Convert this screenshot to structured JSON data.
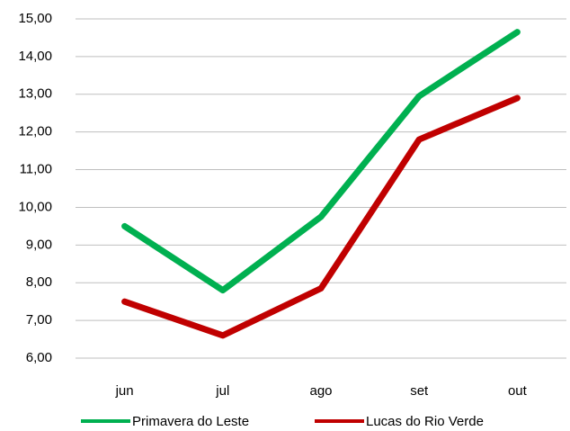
{
  "chart_data": {
    "type": "line",
    "categories": [
      "jun",
      "jul",
      "ago",
      "set",
      "out"
    ],
    "series": [
      {
        "name": "Primavera do Leste",
        "color": "#00b050",
        "values": [
          9.5,
          7.8,
          9.75,
          12.95,
          14.65
        ]
      },
      {
        "name": "Lucas do Rio Verde",
        "color": "#c00000",
        "values": [
          7.5,
          6.6,
          7.85,
          11.8,
          12.9
        ]
      }
    ],
    "ylim": [
      6,
      15
    ],
    "yticks": [
      {
        "value": 6,
        "label": "6,00"
      },
      {
        "value": 7,
        "label": "7,00"
      },
      {
        "value": 8,
        "label": "8,00"
      },
      {
        "value": 9,
        "label": "9,00"
      },
      {
        "value": 10,
        "label": "10,00"
      },
      {
        "value": 11,
        "label": "11,00"
      },
      {
        "value": 12,
        "label": "12,00"
      },
      {
        "value": 13,
        "label": "13,00"
      },
      {
        "value": 14,
        "label": "14,00"
      },
      {
        "value": 15,
        "label": "15,00"
      }
    ],
    "grid": true,
    "legend": "bottom"
  }
}
